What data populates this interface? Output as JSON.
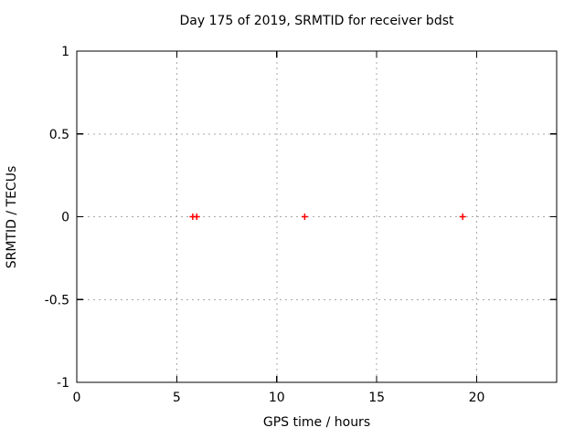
{
  "window": {
    "background": "#ffffff"
  },
  "chart_data": {
    "type": "scatter",
    "title": "Day 175 of 2019, SRMTID for receiver bdst",
    "xlabel": "GPS time / hours",
    "ylabel": "SRMTID / TECUs",
    "xlim": [
      0,
      24
    ],
    "ylim": [
      -1,
      1
    ],
    "xticks": {
      "values": [
        0,
        5,
        10,
        15,
        20
      ],
      "labels": [
        "0",
        "5",
        "10",
        "15",
        "20"
      ]
    },
    "yticks": {
      "values": [
        -1,
        -0.5,
        0,
        0.5,
        1
      ],
      "labels": [
        "-1",
        "-0.5",
        "0",
        "0.5",
        "1"
      ]
    },
    "grid": "dotted",
    "grid_on": true,
    "legend": "none",
    "marker": {
      "shape": "plus",
      "color": "#ff0000",
      "size": 7
    },
    "series": [
      {
        "name": "SRMTID",
        "x": [
          5.8,
          6.0,
          11.4,
          19.3
        ],
        "y": [
          0,
          0,
          0,
          0
        ]
      }
    ],
    "colors": {
      "axis": "#000000",
      "grid": "#a9a9a9",
      "text": "#000000"
    }
  }
}
